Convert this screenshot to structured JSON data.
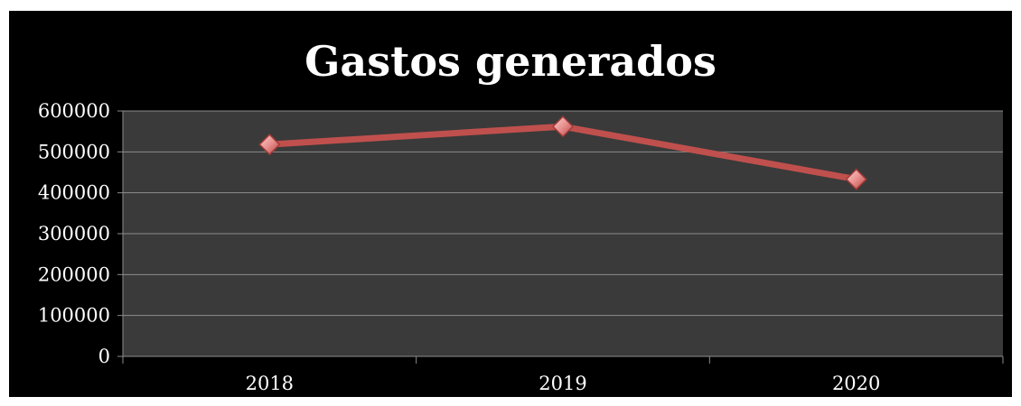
{
  "chart_data": {
    "type": "line",
    "title": "Gastos generados",
    "xlabel": "",
    "ylabel": "",
    "categories": [
      "2018",
      "2019",
      "2020"
    ],
    "series": [
      {
        "values": [
          518000,
          562000,
          433000
        ]
      }
    ],
    "ylim": [
      0,
      600000
    ],
    "yticks": [
      "0",
      "100000",
      "200000",
      "300000",
      "400000",
      "500000",
      "600000"
    ],
    "grid": true,
    "legend": "none",
    "colors": {
      "line": "#c0504d",
      "marker": "#e8918f",
      "plot_background": "#3a3a3a",
      "frame_background": "#000000",
      "grid": "#8c8c8c",
      "text": "#ffffff"
    }
  }
}
